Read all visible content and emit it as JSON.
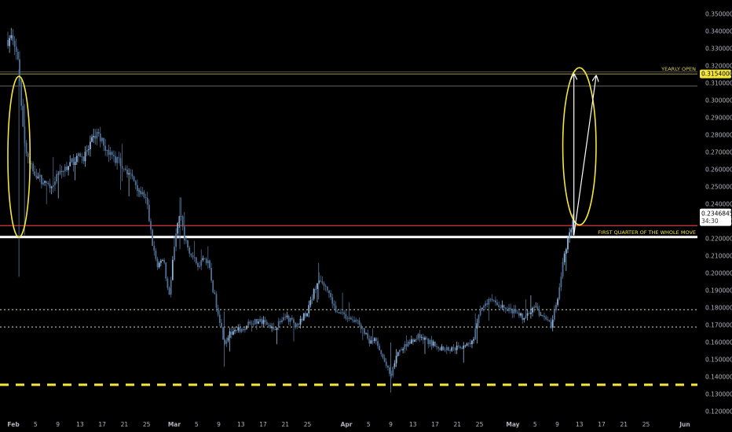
{
  "colors": {
    "background": "#000000",
    "candle": "#4f6f94",
    "candle_bright": "#8fb4dc",
    "tick_text": "#b2b5be",
    "yellow": "#f5e63c",
    "red_line": "#d23a3a",
    "white": "#ffffff",
    "dotted_line": "#e0d8a0",
    "level_line": "#7d7d68"
  },
  "chart_data": {
    "type": "candlestick",
    "x_axis": {
      "range": [
        "2024-01-31",
        "2024-06-01"
      ],
      "tick_labels": [
        {
          "label": "Feb",
          "date": "2024-02-01"
        },
        {
          "label": "5",
          "date": "2024-02-05"
        },
        {
          "label": "9",
          "date": "2024-02-09"
        },
        {
          "label": "13",
          "date": "2024-02-13"
        },
        {
          "label": "17",
          "date": "2024-02-17"
        },
        {
          "label": "21",
          "date": "2024-02-21"
        },
        {
          "label": "25",
          "date": "2024-02-25"
        },
        {
          "label": "Mar",
          "date": "2024-03-01"
        },
        {
          "label": "5",
          "date": "2024-03-05"
        },
        {
          "label": "9",
          "date": "2024-03-09"
        },
        {
          "label": "13",
          "date": "2024-03-13"
        },
        {
          "label": "17",
          "date": "2024-03-17"
        },
        {
          "label": "21",
          "date": "2024-03-21"
        },
        {
          "label": "25",
          "date": "2024-03-25"
        },
        {
          "label": "Apr",
          "date": "2024-04-01"
        },
        {
          "label": "5",
          "date": "2024-04-05"
        },
        {
          "label": "9",
          "date": "2024-04-09"
        },
        {
          "label": "13",
          "date": "2024-04-13"
        },
        {
          "label": "17",
          "date": "2024-04-17"
        },
        {
          "label": "21",
          "date": "2024-04-21"
        },
        {
          "label": "25",
          "date": "2024-04-25"
        },
        {
          "label": "May",
          "date": "2024-05-01"
        },
        {
          "label": "5",
          "date": "2024-05-05"
        },
        {
          "label": "9",
          "date": "2024-05-09"
        },
        {
          "label": "13",
          "date": "2024-05-13"
        },
        {
          "label": "17",
          "date": "2024-05-17"
        },
        {
          "label": "21",
          "date": "2024-05-21"
        },
        {
          "label": "25",
          "date": "2024-05-25"
        },
        {
          "label": "Jun",
          "date": "2024-06-01"
        }
      ]
    },
    "y_axis": {
      "range": [
        0.115,
        0.354
      ],
      "tick_labels": [
        "0.3500000",
        "0.3400000",
        "0.3300000",
        "0.3200000",
        "0.3100000",
        "0.3000000",
        "0.2900000",
        "0.2800000",
        "0.2700000",
        "0.2600000",
        "0.2500000",
        "0.2400000",
        "0.2300000",
        "0.2200000",
        "0.2100000",
        "0.2000000",
        "0.1900000",
        "0.1800000",
        "0.1700000",
        "0.1600000",
        "0.1500000",
        "0.1400000",
        "0.1300000",
        "0.1200000"
      ]
    },
    "price_path": [
      {
        "date": "2024-01-31",
        "price": 0.335
      },
      {
        "date": "2024-02-01",
        "price": 0.338
      },
      {
        "date": "2024-02-02",
        "price": 0.318
      },
      {
        "date": "2024-02-03",
        "price": 0.275
      },
      {
        "date": "2024-02-04",
        "price": 0.262
      },
      {
        "date": "2024-02-05",
        "price": 0.258
      },
      {
        "date": "2024-02-07",
        "price": 0.25
      },
      {
        "date": "2024-02-09",
        "price": 0.256
      },
      {
        "date": "2024-02-12",
        "price": 0.266
      },
      {
        "date": "2024-02-14",
        "price": 0.268
      },
      {
        "date": "2024-02-16",
        "price": 0.282
      },
      {
        "date": "2024-02-18",
        "price": 0.27
      },
      {
        "date": "2024-02-21",
        "price": 0.262
      },
      {
        "date": "2024-02-23",
        "price": 0.252
      },
      {
        "date": "2024-02-25",
        "price": 0.242
      },
      {
        "date": "2024-02-26",
        "price": 0.218
      },
      {
        "date": "2024-02-27",
        "price": 0.203
      },
      {
        "date": "2024-02-28",
        "price": 0.21
      },
      {
        "date": "2024-02-29",
        "price": 0.186
      },
      {
        "date": "2024-03-01",
        "price": 0.215
      },
      {
        "date": "2024-03-02",
        "price": 0.236
      },
      {
        "date": "2024-03-03",
        "price": 0.218
      },
      {
        "date": "2024-03-05",
        "price": 0.205
      },
      {
        "date": "2024-03-07",
        "price": 0.208
      },
      {
        "date": "2024-03-08",
        "price": 0.19
      },
      {
        "date": "2024-03-09",
        "price": 0.176
      },
      {
        "date": "2024-03-10",
        "price": 0.16
      },
      {
        "date": "2024-03-11",
        "price": 0.165
      },
      {
        "date": "2024-03-13",
        "price": 0.168
      },
      {
        "date": "2024-03-15",
        "price": 0.172
      },
      {
        "date": "2024-03-17",
        "price": 0.172
      },
      {
        "date": "2024-03-19",
        "price": 0.168
      },
      {
        "date": "2024-03-21",
        "price": 0.175
      },
      {
        "date": "2024-03-23",
        "price": 0.17
      },
      {
        "date": "2024-03-25",
        "price": 0.178
      },
      {
        "date": "2024-03-27",
        "price": 0.198
      },
      {
        "date": "2024-03-29",
        "price": 0.188
      },
      {
        "date": "2024-03-30",
        "price": 0.178
      },
      {
        "date": "2024-04-01",
        "price": 0.175
      },
      {
        "date": "2024-04-03",
        "price": 0.172
      },
      {
        "date": "2024-04-04",
        "price": 0.168
      },
      {
        "date": "2024-04-05",
        "price": 0.16
      },
      {
        "date": "2024-04-06",
        "price": 0.162
      },
      {
        "date": "2024-04-08",
        "price": 0.148
      },
      {
        "date": "2024-04-09",
        "price": 0.14
      },
      {
        "date": "2024-04-10",
        "price": 0.152
      },
      {
        "date": "2024-04-12",
        "price": 0.16
      },
      {
        "date": "2024-04-14",
        "price": 0.164
      },
      {
        "date": "2024-04-16",
        "price": 0.16
      },
      {
        "date": "2024-04-18",
        "price": 0.157
      },
      {
        "date": "2024-04-20",
        "price": 0.156
      },
      {
        "date": "2024-04-22",
        "price": 0.158
      },
      {
        "date": "2024-04-24",
        "price": 0.162
      },
      {
        "date": "2024-04-25",
        "price": 0.18
      },
      {
        "date": "2024-04-27",
        "price": 0.184
      },
      {
        "date": "2024-04-29",
        "price": 0.181
      },
      {
        "date": "2024-05-01",
        "price": 0.178
      },
      {
        "date": "2024-05-03",
        "price": 0.174
      },
      {
        "date": "2024-05-05",
        "price": 0.18
      },
      {
        "date": "2024-05-07",
        "price": 0.172
      },
      {
        "date": "2024-05-08",
        "price": 0.17
      },
      {
        "date": "2024-05-09",
        "price": 0.185
      },
      {
        "date": "2024-05-10",
        "price": 0.205
      },
      {
        "date": "2024-05-11",
        "price": 0.22
      },
      {
        "date": "2024-05-12",
        "price": 0.2347
      }
    ],
    "horizontal_levels": [
      {
        "label": "YEARLY OPEN",
        "price": 0.3154,
        "style": "thin",
        "color": "#d8cf5a"
      },
      {
        "price": 0.3165,
        "style": "thin",
        "color": "#7d7d68"
      },
      {
        "price": 0.3084,
        "style": "thin",
        "color": "#7d7d68"
      },
      {
        "price": 0.2276,
        "style": "solid",
        "color": "#d23a3a"
      },
      {
        "label": "FIRST QUARTER OF THE WHOLE MOVE",
        "price": 0.221,
        "style": "thick",
        "color": "#ffffff"
      },
      {
        "price": 0.179,
        "style": "dotted",
        "color": "#e0d8a0"
      },
      {
        "price": 0.169,
        "style": "dotted",
        "color": "#e0d8a0"
      },
      {
        "price": 0.1355,
        "style": "dashed-thick",
        "color": "#f5e63c"
      }
    ],
    "price_labels": [
      {
        "price": 0.3154,
        "text": "0.3154000",
        "style": "yellow"
      },
      {
        "price": 0.2347,
        "text": "0.2346845",
        "style": "white",
        "subtext": "34:30"
      }
    ],
    "annotations": [
      {
        "type": "ellipse",
        "color": "#f5e63c",
        "date_from": "2024-01-31",
        "date_to": "2024-02-04",
        "price_from": 0.221,
        "price_to": 0.314
      },
      {
        "type": "ellipse",
        "color": "#f5e63c",
        "date_from": "2024-05-10",
        "date_to": "2024-05-16",
        "price_from": 0.228,
        "price_to": 0.319
      },
      {
        "type": "arrow",
        "color": "#ffffff",
        "from": {
          "date": "2024-05-12",
          "price": 0.222
        },
        "to": {
          "date": "2024-05-12",
          "price": 0.315
        }
      },
      {
        "type": "arrow",
        "color": "#ffffff",
        "from": {
          "date": "2024-05-12",
          "price": 0.222
        },
        "to": {
          "date": "2024-05-16",
          "price": 0.314
        }
      }
    ],
    "grid": false,
    "legend": "none"
  }
}
